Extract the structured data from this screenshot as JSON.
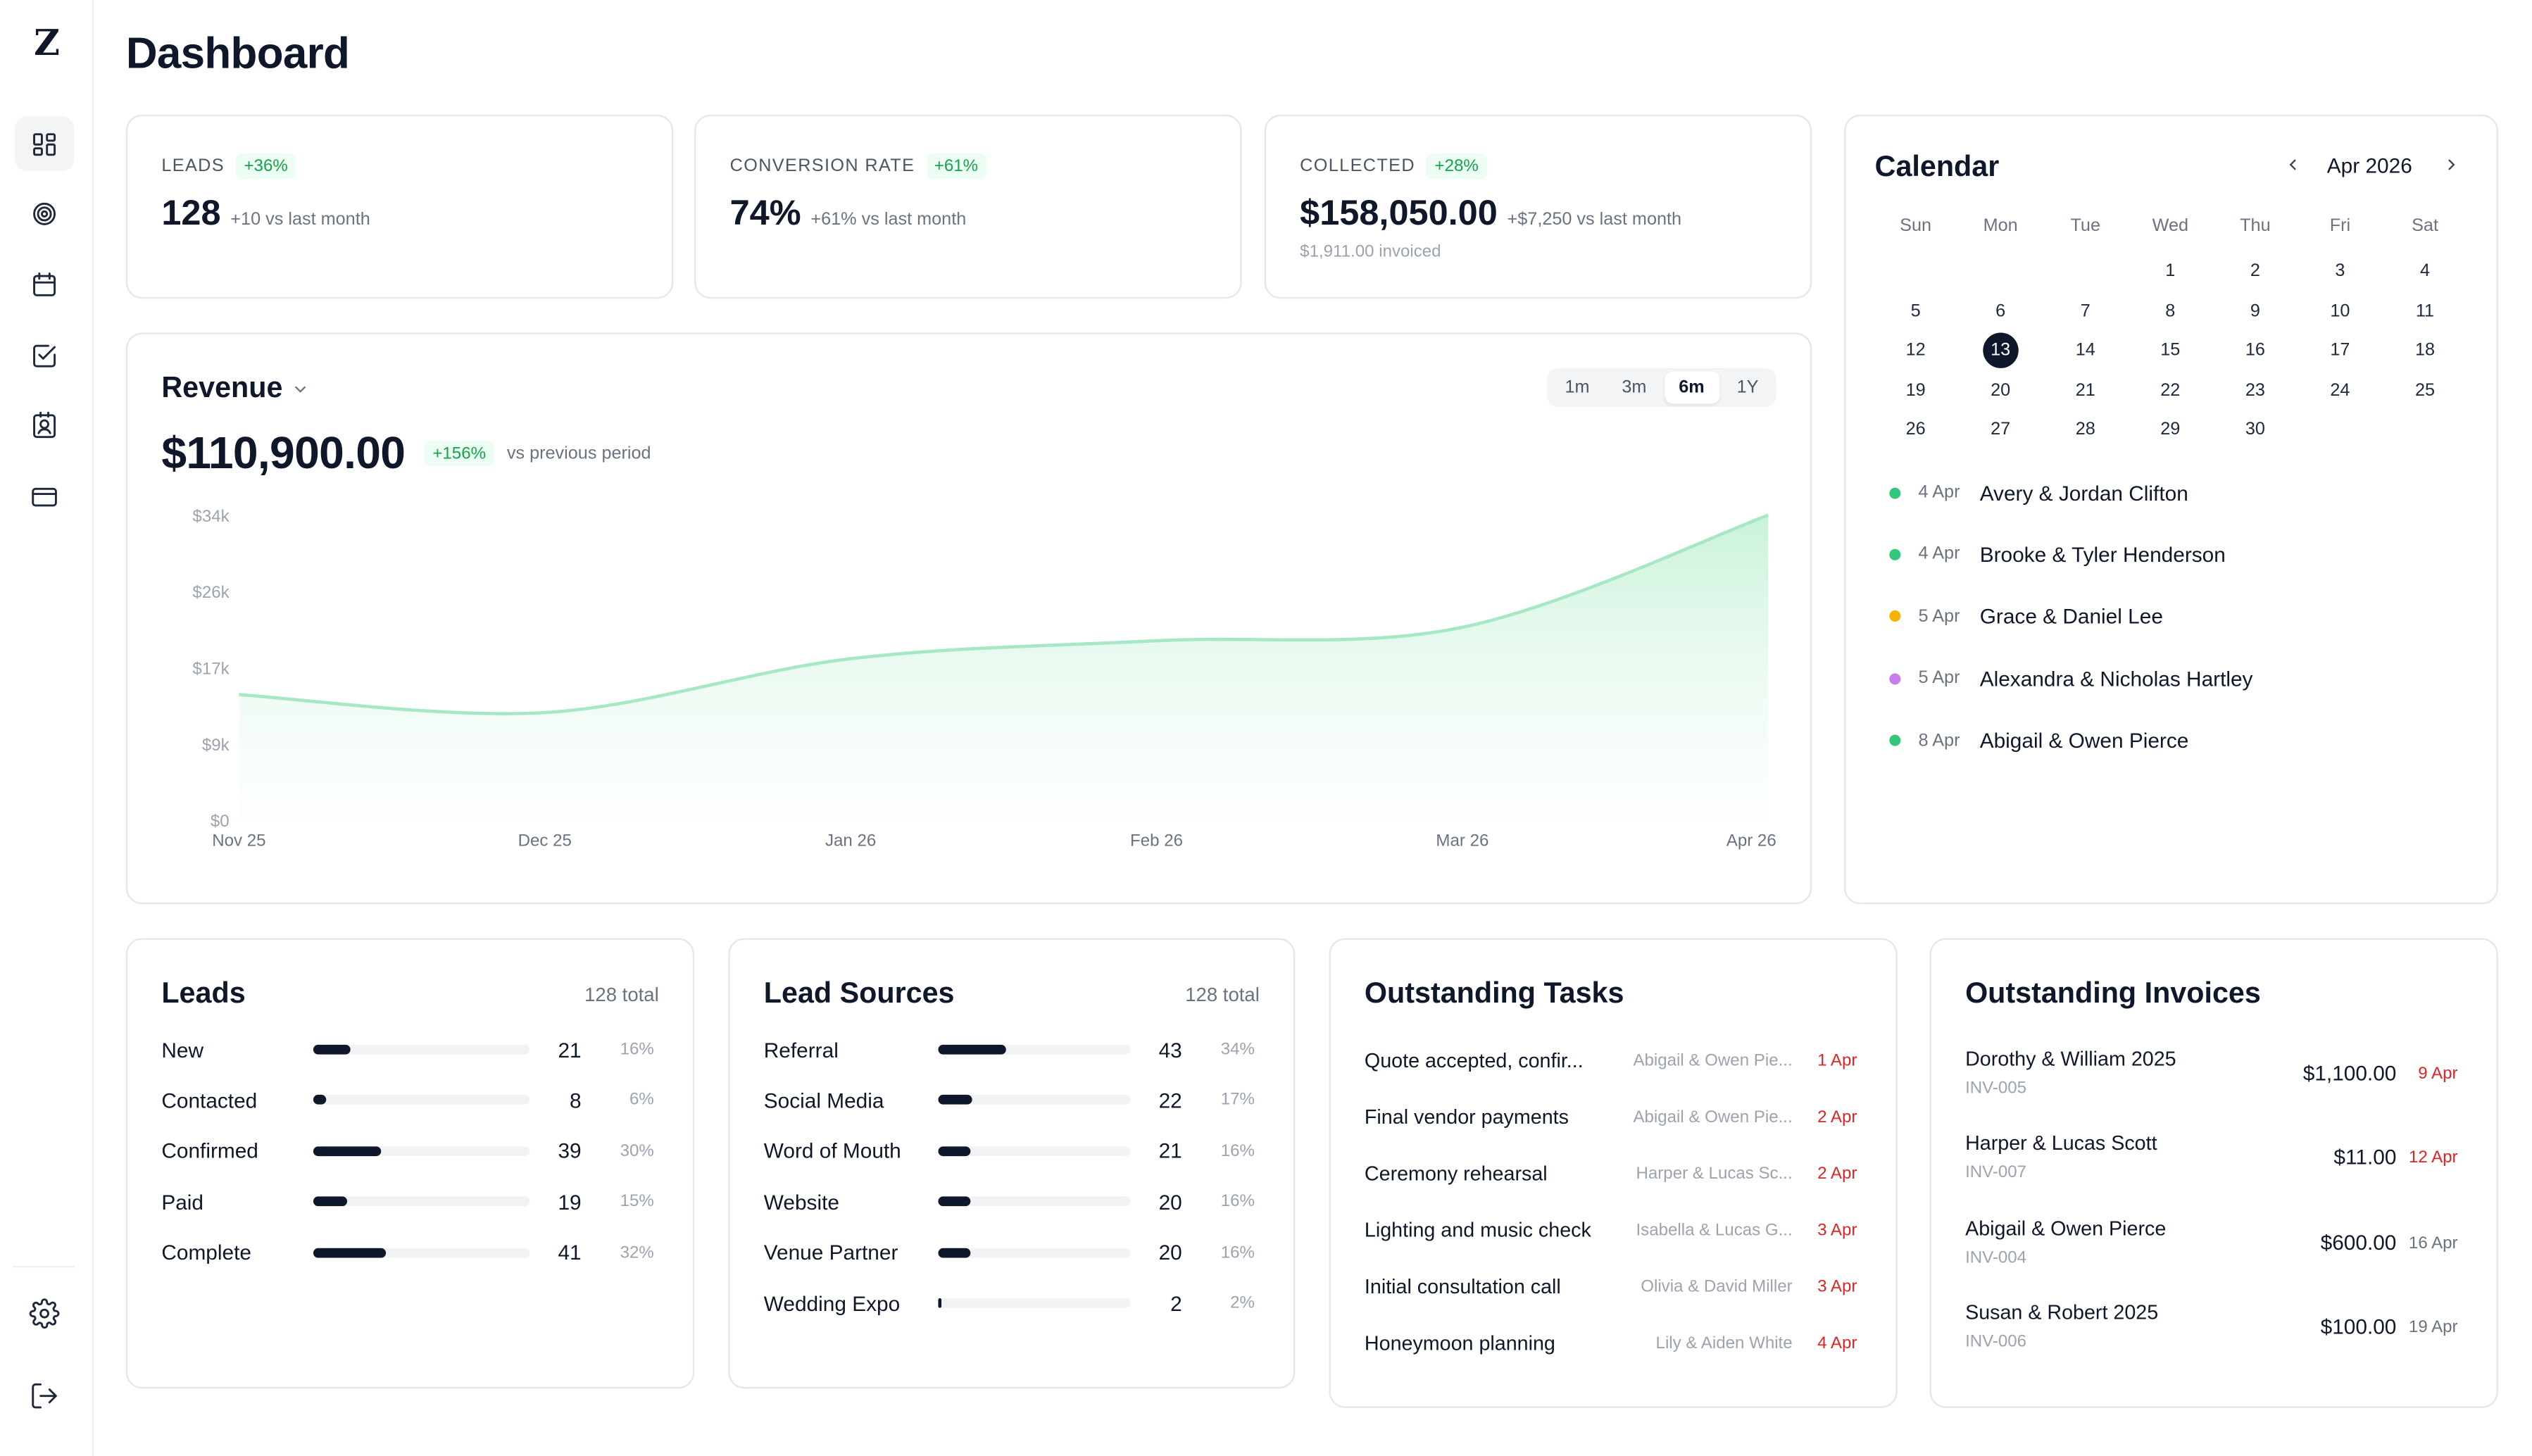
{
  "page_title": "Dashboard",
  "sidebar": {
    "logo": "Z",
    "items": [
      {
        "icon": "dashboard-icon",
        "active": true
      },
      {
        "icon": "target-icon",
        "active": false
      },
      {
        "icon": "calendar-icon",
        "active": false
      },
      {
        "icon": "checkbox-icon",
        "active": false
      },
      {
        "icon": "contact-icon",
        "active": false
      },
      {
        "icon": "card-icon",
        "active": false
      }
    ],
    "bottom": [
      {
        "icon": "gear-icon"
      },
      {
        "icon": "logout-icon"
      }
    ]
  },
  "stats": {
    "leads": {
      "label": "LEADS",
      "change": "+36%",
      "value": "128",
      "sub": "+10 vs last month"
    },
    "conversion": {
      "label": "CONVERSION RATE",
      "change": "+61%",
      "value": "74%",
      "sub": "+61% vs last month"
    },
    "collected": {
      "label": "COLLECTED",
      "change": "+28%",
      "value": "$158,050.00",
      "sub": "+$7,250 vs last month",
      "extra": "$1,911.00 invoiced"
    }
  },
  "revenue": {
    "title": "Revenue",
    "value": "$110,900.00",
    "change": "+156%",
    "change_label": "vs previous period",
    "ranges": [
      "1m",
      "3m",
      "6m",
      "1Y"
    ],
    "active_range": "6m"
  },
  "chart_data": {
    "type": "area",
    "title": "Revenue",
    "x": [
      "Nov 25",
      "Dec 25",
      "Jan 26",
      "Feb 26",
      "Mar 26",
      "Apr 26"
    ],
    "y_ticks": [
      "$34k",
      "$26k",
      "$17k",
      "$9k",
      "$0"
    ],
    "ylim": [
      0,
      34000
    ],
    "series": [
      {
        "values": [
          14000,
          12000,
          18000,
          20000,
          21500,
          34000
        ]
      }
    ],
    "color": "#86e3b0",
    "grid": false,
    "legend": "none"
  },
  "calendar": {
    "title": "Calendar",
    "month": "Apr 2026",
    "weekdays": [
      "Sun",
      "Mon",
      "Tue",
      "Wed",
      "Thu",
      "Fri",
      "Sat"
    ],
    "weeks": [
      [
        "",
        "",
        "",
        "1",
        "2",
        "3",
        "4"
      ],
      [
        "5",
        "6",
        "7",
        "8",
        "9",
        "10",
        "11"
      ],
      [
        "12",
        "13",
        "14",
        "15",
        "16",
        "17",
        "18"
      ],
      [
        "19",
        "20",
        "21",
        "22",
        "23",
        "24",
        "25"
      ],
      [
        "26",
        "27",
        "28",
        "29",
        "30",
        "",
        ""
      ]
    ],
    "selected": "13",
    "events": [
      {
        "date": "4 Apr",
        "name": "Avery & Jordan Clifton",
        "color": "#34c77b"
      },
      {
        "date": "4 Apr",
        "name": "Brooke & Tyler Henderson",
        "color": "#34c77b"
      },
      {
        "date": "5 Apr",
        "name": "Grace & Daniel Lee",
        "color": "#f5b301"
      },
      {
        "date": "5 Apr",
        "name": "Alexandra & Nicholas Hartley",
        "color": "#c77dea"
      },
      {
        "date": "8 Apr",
        "name": "Abigail & Owen Pierce",
        "color": "#34c77b"
      }
    ]
  },
  "leads": {
    "title": "Leads",
    "total": "128 total",
    "rows": [
      {
        "label": "New",
        "count": "21",
        "pct": "16%",
        "fill": 0.16
      },
      {
        "label": "Contacted",
        "count": "8",
        "pct": "6%",
        "fill": 0.06
      },
      {
        "label": "Confirmed",
        "count": "39",
        "pct": "30%",
        "fill": 0.3
      },
      {
        "label": "Paid",
        "count": "19",
        "pct": "15%",
        "fill": 0.15
      },
      {
        "label": "Complete",
        "count": "41",
        "pct": "32%",
        "fill": 0.32
      }
    ]
  },
  "sources": {
    "title": "Lead Sources",
    "total": "128 total",
    "rows": [
      {
        "label": "Referral",
        "count": "43",
        "pct": "34%",
        "fill": 0.34
      },
      {
        "label": "Social Media",
        "count": "22",
        "pct": "17%",
        "fill": 0.17
      },
      {
        "label": "Word of Mouth",
        "count": "21",
        "pct": "16%",
        "fill": 0.16
      },
      {
        "label": "Website",
        "count": "20",
        "pct": "16%",
        "fill": 0.16
      },
      {
        "label": "Venue Partner",
        "count": "20",
        "pct": "16%",
        "fill": 0.16
      },
      {
        "label": "Wedding Expo",
        "count": "2",
        "pct": "2%",
        "fill": 0.02
      }
    ]
  },
  "tasks": {
    "title": "Outstanding Tasks",
    "rows": [
      {
        "name": "Quote accepted, confir...",
        "client": "Abigail & Owen Pie...",
        "date": "1 Apr"
      },
      {
        "name": "Final vendor payments",
        "client": "Abigail & Owen Pie...",
        "date": "2 Apr"
      },
      {
        "name": "Ceremony rehearsal",
        "client": "Harper & Lucas Sc...",
        "date": "2 Apr"
      },
      {
        "name": "Lighting and music check",
        "client": "Isabella & Lucas G...",
        "date": "3 Apr"
      },
      {
        "name": "Initial consultation call",
        "client": "Olivia & David Miller",
        "date": "3 Apr"
      },
      {
        "name": "Honeymoon planning",
        "client": "Lily & Aiden White",
        "date": "4 Apr"
      }
    ]
  },
  "invoices": {
    "title": "Outstanding Invoices",
    "rows": [
      {
        "name": "Dorothy & William 2025",
        "id": "INV-005",
        "amount": "$1,100.00",
        "date": "9 Apr",
        "overdue": true
      },
      {
        "name": "Harper & Lucas Scott",
        "id": "INV-007",
        "amount": "$11.00",
        "date": "12 Apr",
        "overdue": true
      },
      {
        "name": "Abigail & Owen Pierce",
        "id": "INV-004",
        "amount": "$600.00",
        "date": "16 Apr",
        "overdue": false
      },
      {
        "name": "Susan & Robert 2025",
        "id": "INV-006",
        "amount": "$100.00",
        "date": "19 Apr",
        "overdue": false
      }
    ]
  }
}
